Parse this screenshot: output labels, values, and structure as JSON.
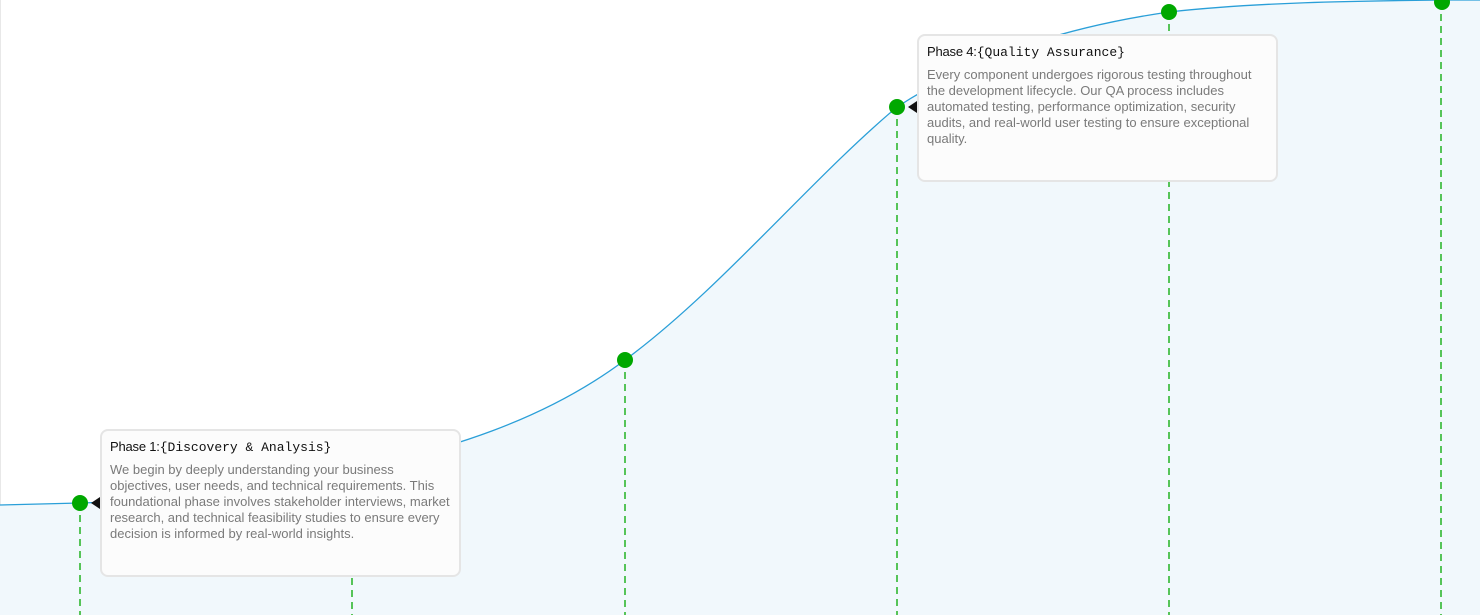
{
  "colors": {
    "curve": "#2a9fd8",
    "area_fill": "#f1f8fc",
    "node": "#00a800",
    "guide": "#22b322",
    "card_border": "#e5e5e5",
    "pointer": "#111111"
  },
  "timeline": {
    "nodes": [
      {
        "id": "phase-1"
      },
      {
        "id": "phase-2"
      },
      {
        "id": "phase-3"
      },
      {
        "id": "phase-4"
      },
      {
        "id": "phase-5"
      },
      {
        "id": "phase-6"
      }
    ]
  },
  "cards": [
    {
      "prefix": "Phase 1:",
      "name": "{Discovery & Analysis}",
      "body": "We begin by deeply understanding your business objectives, user needs, and technical requirements. This foundational phase involves stakeholder interviews, market research, and technical feasibility studies to ensure every decision is informed by real-world insights."
    },
    {
      "prefix": "Phase 4:",
      "name": "{Quality Assurance}",
      "body": "Every component undergoes rigorous testing throughout the development lifecycle. Our QA process includes automated testing, performance optimization, security audits, and real-world user testing to ensure exceptional quality."
    }
  ]
}
